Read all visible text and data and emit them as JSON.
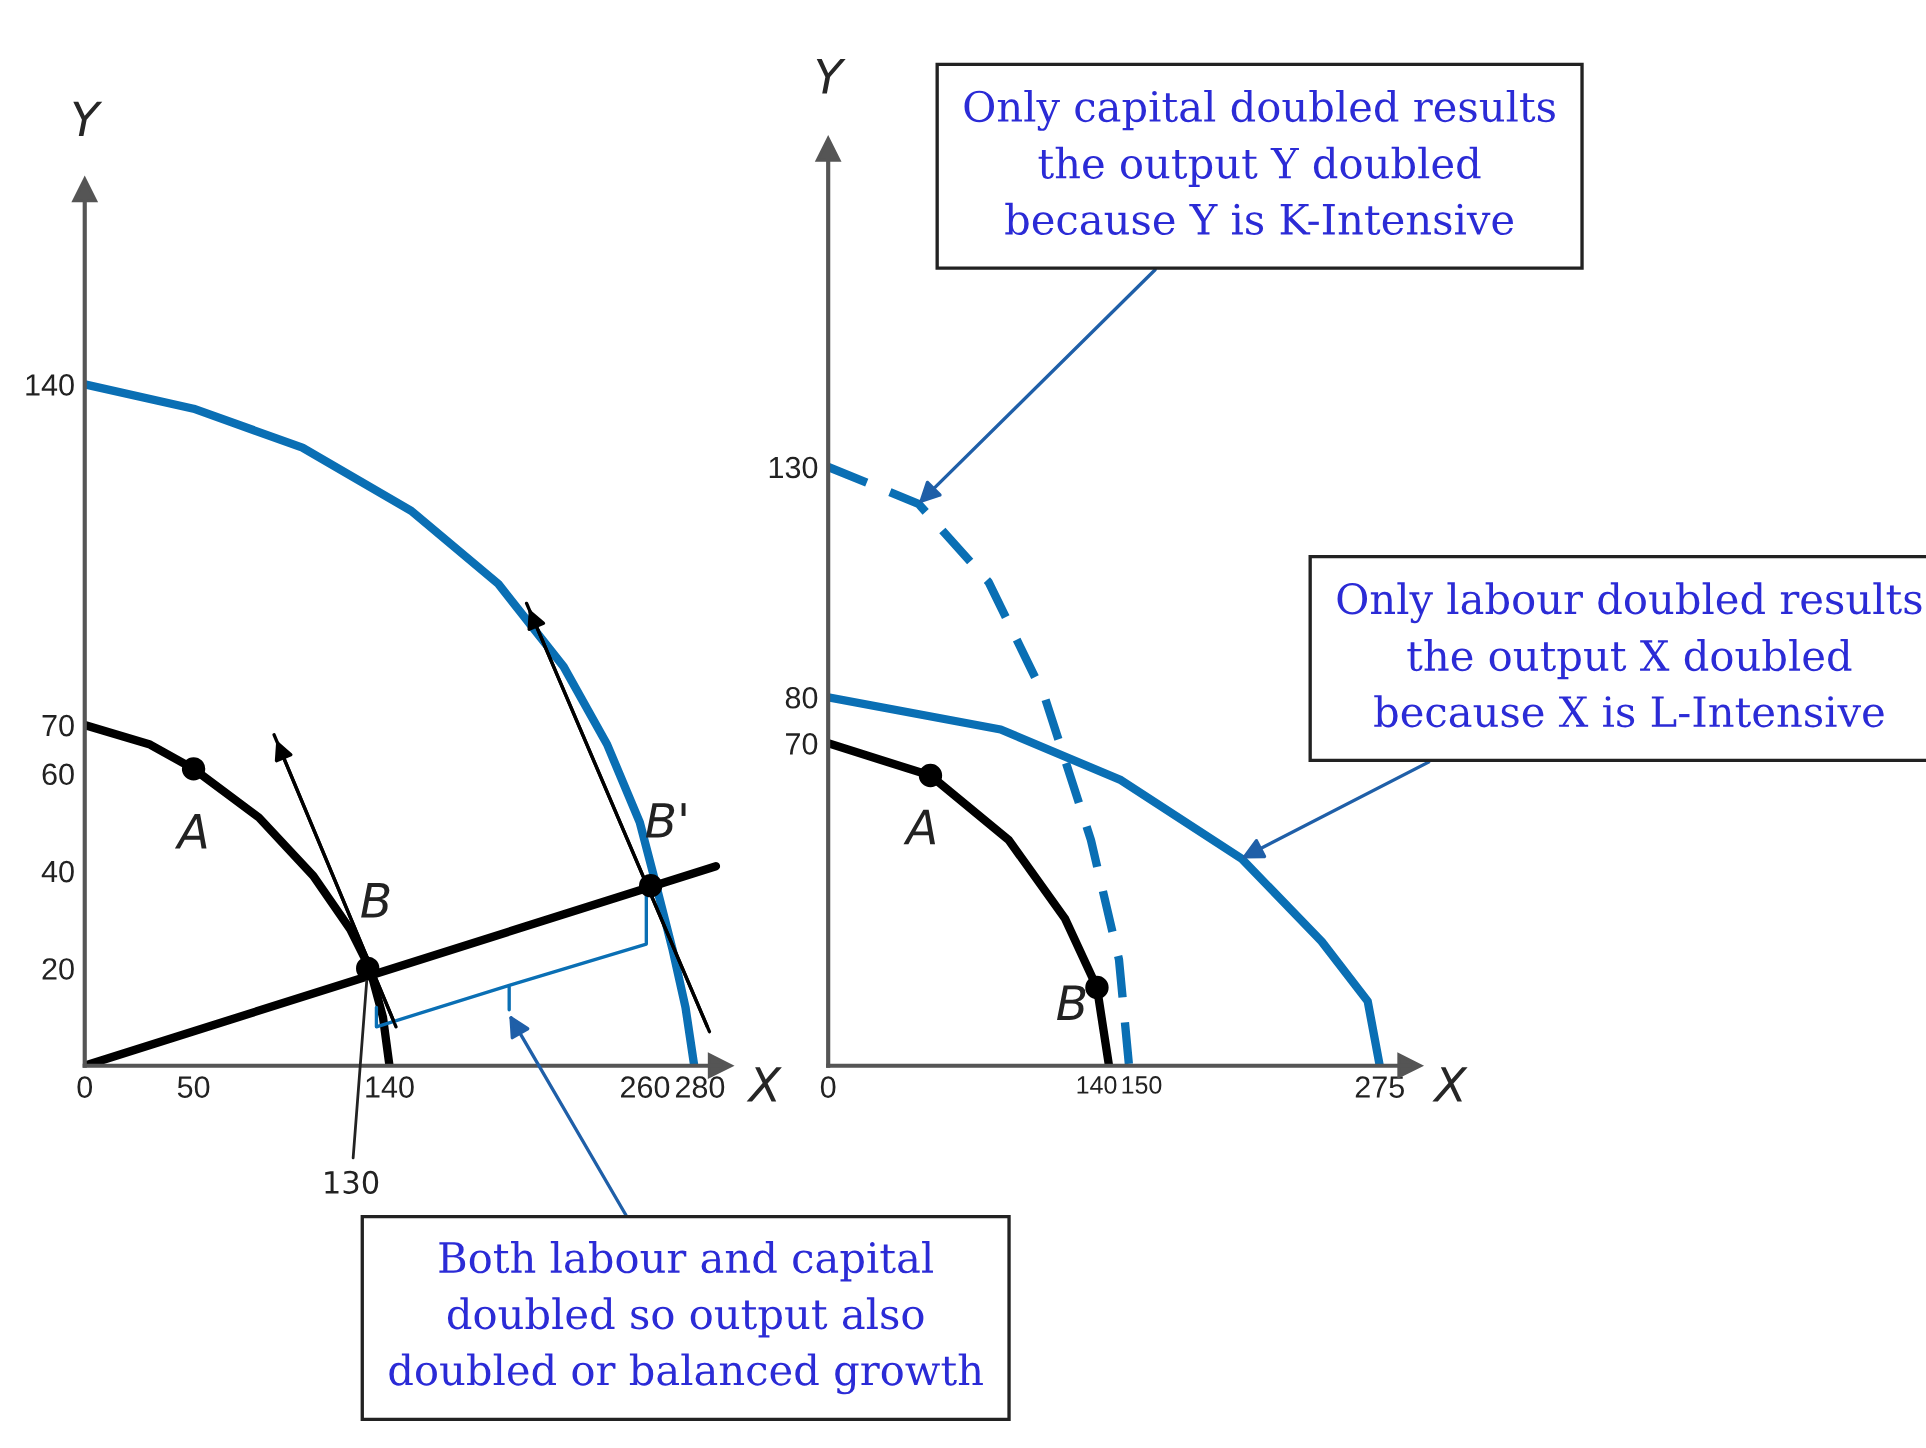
{
  "chart_data": [
    {
      "type": "line",
      "xlabel": "X",
      "ylabel": "Y",
      "xlim": [
        0,
        292
      ],
      "ylim": [
        0,
        180
      ],
      "xticks": [
        0,
        50,
        140,
        260,
        280
      ],
      "yticks": [
        20,
        40,
        60,
        70,
        140
      ],
      "series": [
        {
          "color": "#000000",
          "line_style": "solid",
          "x": [
            0,
            30,
            50,
            80,
            105,
            122,
            131,
            137,
            140
          ],
          "values": [
            70,
            66,
            61,
            51,
            39,
            28,
            20,
            10,
            0
          ]
        },
        {
          "color": "#0a6fb4",
          "line_style": "solid",
          "x": [
            0,
            50,
            100,
            150,
            190,
            220,
            240,
            255,
            262,
            270,
            276,
            280
          ],
          "values": [
            140,
            135,
            127,
            114,
            99,
            82,
            66,
            50,
            38,
            24,
            12,
            0
          ]
        },
        {
          "color": "#000000",
          "line_style": "solid",
          "x": [
            0,
            145,
            290
          ],
          "values": [
            0,
            20.5,
            41
          ]
        },
        {
          "color": "#000000",
          "line_style": "solid",
          "x": [
            143,
            87
          ],
          "values": [
            8,
            68
          ]
        },
        {
          "color": "#000000",
          "line_style": "solid",
          "x": [
            287,
            203
          ],
          "values": [
            7,
            95
          ]
        },
        {
          "type": "scatter",
          "color": "#000000",
          "marker": "circle",
          "x": [
            50,
            130,
            260
          ],
          "values": [
            61,
            20,
            37
          ]
        }
      ],
      "annotations": [
        {
          "text": "A",
          "x": 50,
          "y": 61
        },
        {
          "text": "B",
          "x": 130,
          "y": 20
        },
        {
          "text": "B'",
          "x": 260,
          "y": 37
        },
        {
          "text": "130",
          "x": 130,
          "y": 20
        },
        "Both labour and capital\ndoubled so output also\ndoubled or balanced growth"
      ]
    },
    {
      "type": "line",
      "xlabel": "X",
      "ylabel": "Y",
      "xlim": [
        0,
        290
      ],
      "ylim": [
        0,
        199
      ],
      "xticks": [
        0,
        140,
        150,
        275
      ],
      "yticks": [
        70,
        80,
        130
      ],
      "series": [
        {
          "color": "#000000",
          "line_style": "solid",
          "x": [
            0,
            51,
            90,
            118,
            134,
            140
          ],
          "values": [
            70,
            63,
            49,
            32,
            17,
            0
          ]
        },
        {
          "color": "#0a6fb4",
          "line_style": "dashed",
          "x": [
            0,
            45,
            80,
            108,
            131,
            145,
            150
          ],
          "values": [
            130,
            122,
            105,
            80,
            49,
            23,
            0
          ]
        },
        {
          "color": "#0a6fb4",
          "line_style": "solid",
          "x": [
            0,
            86,
            146,
            206,
            246,
            269,
            275
          ],
          "values": [
            80,
            73,
            62,
            45,
            27,
            14,
            0
          ]
        },
        {
          "type": "scatter",
          "color": "#000000",
          "marker": "circle",
          "x": [
            51,
            134
          ],
          "values": [
            63,
            17
          ]
        }
      ],
      "annotations": [
        {
          "text": "A",
          "x": 51,
          "y": 63
        },
        {
          "text": "B",
          "x": 134,
          "y": 17
        },
        {
          "text": "Only capital doubled results\nthe output Y doubled\nbecause Y is K-Intensive",
          "x": 45,
          "y": 122
        },
        {
          "text": "Only labour doubled results\nthe output X doubled\nbecause X is L-Intensive",
          "x": 206,
          "y": 45
        }
      ]
    }
  ]
}
